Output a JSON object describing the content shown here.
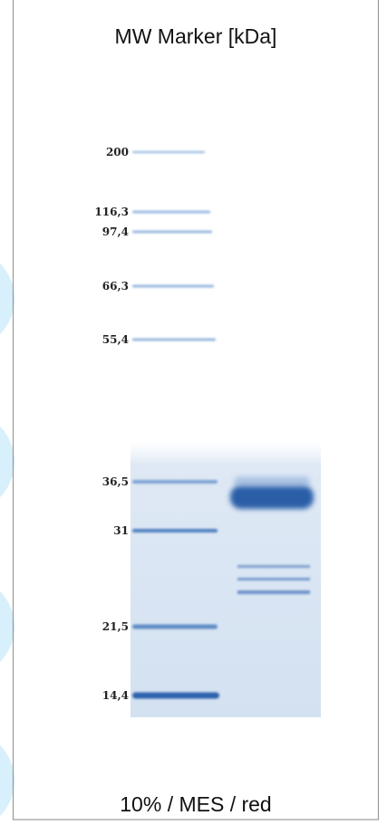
{
  "header": {
    "title": "MW Marker [kDa]"
  },
  "markers": [
    "200",
    "116,3",
    "97,4",
    "66,3",
    "55,4",
    "36,5",
    "31",
    "21,5",
    "14,4"
  ],
  "footer": {
    "caption": "10% / MES / red"
  }
}
